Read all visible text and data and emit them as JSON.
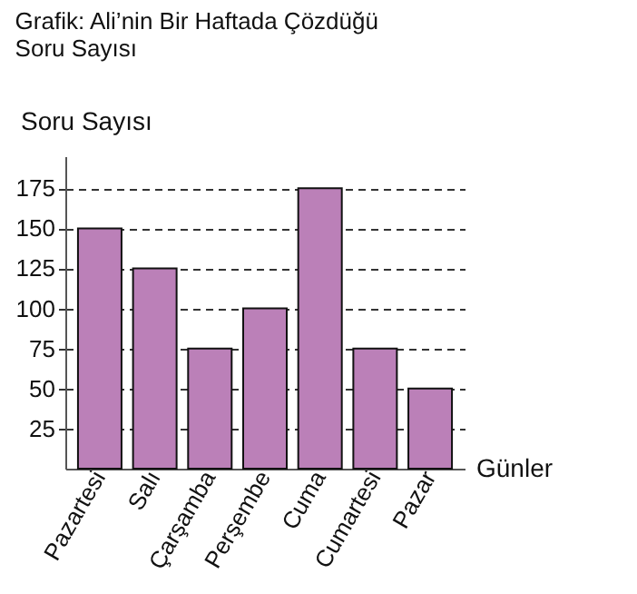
{
  "chart_data": {
    "type": "bar",
    "title": "Grafik: Ali’nin Bir Haftada Çözdüğü Soru Sayısı",
    "xlabel": "Günler",
    "ylabel": "Soru Sayısı",
    "categories": [
      "Pazartesi",
      "Salı",
      "Çarşamba",
      "Perşembe",
      "Cuma",
      "Cumartesi",
      "Pazar"
    ],
    "values": [
      150,
      125,
      75,
      100,
      175,
      75,
      50
    ],
    "color": "#bb80b8",
    "ylim": [
      0,
      195
    ],
    "yticks": [
      25,
      50,
      75,
      100,
      125,
      150,
      175
    ],
    "grid": "y",
    "line_style": "dashed"
  }
}
